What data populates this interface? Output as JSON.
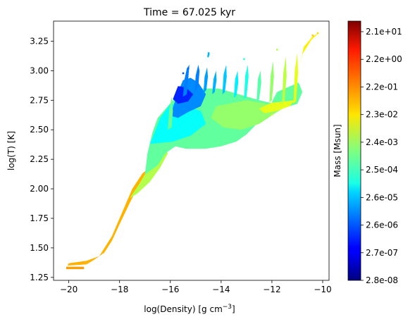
{
  "chart_data": {
    "type": "heatmap",
    "title": "Time = 67.025 kyr",
    "xlabel": "log(Density) [g cm",
    "xlabel_sup": "−3",
    "xlabel_end": "]",
    "ylabel": "log(T) [K]",
    "xlim": [
      -20.6,
      -9.75
    ],
    "ylim": [
      1.225,
      3.42
    ],
    "x_ticks": [
      {
        "value": -20,
        "label": "−20"
      },
      {
        "value": -18,
        "label": "−18"
      },
      {
        "value": -16,
        "label": "−16"
      },
      {
        "value": -14,
        "label": "−14"
      },
      {
        "value": -12,
        "label": "−12"
      },
      {
        "value": -10,
        "label": "−10"
      }
    ],
    "y_ticks": [
      {
        "value": 1.25,
        "label": "1.25"
      },
      {
        "value": 1.5,
        "label": "1.50"
      },
      {
        "value": 1.75,
        "label": "1.75"
      },
      {
        "value": 2.0,
        "label": "2.00"
      },
      {
        "value": 2.25,
        "label": "2.25"
      },
      {
        "value": 2.5,
        "label": "2.50"
      },
      {
        "value": 2.75,
        "label": "2.75"
      },
      {
        "value": 3.0,
        "label": "3.00"
      },
      {
        "value": 3.25,
        "label": "3.25"
      }
    ],
    "grid": false,
    "colormap": "jet",
    "colorbar": {
      "label": "Mass [Msun]",
      "tick_labels": [
        "2.1e+01",
        "2.2e+00",
        "2.2e-01",
        "2.3e-02",
        "2.4e-03",
        "2.5e-04",
        "2.6e-05",
        "2.6e-06",
        "2.7e-07",
        "2.8e-08"
      ]
    },
    "regions": [
      {
        "level": 0.72,
        "points": [
          [
            -20.1,
            1.32
          ],
          [
            -19.4,
            1.32
          ],
          [
            -19.4,
            1.34
          ],
          [
            -20.1,
            1.34
          ]
        ]
      },
      {
        "level": 0.7,
        "points": [
          [
            -20.05,
            1.35
          ],
          [
            -19.3,
            1.36
          ],
          [
            -19.0,
            1.4
          ],
          [
            -18.6,
            1.46
          ],
          [
            -18.3,
            1.56
          ],
          [
            -18.0,
            1.7
          ],
          [
            -17.6,
            1.88
          ],
          [
            -17.2,
            2.05
          ],
          [
            -16.9,
            2.15
          ],
          [
            -16.7,
            2.2
          ],
          [
            -17.1,
            2.13
          ],
          [
            -17.5,
            2.0
          ],
          [
            -17.9,
            1.8
          ],
          [
            -18.3,
            1.6
          ],
          [
            -18.8,
            1.43
          ],
          [
            -19.3,
            1.39
          ],
          [
            -20.0,
            1.37
          ]
        ]
      },
      {
        "level": 0.55,
        "points": [
          [
            -17.6,
            1.92
          ],
          [
            -17.2,
            2.05
          ],
          [
            -16.9,
            2.16
          ],
          [
            -16.6,
            2.28
          ],
          [
            -16.3,
            2.38
          ],
          [
            -16.1,
            2.3
          ],
          [
            -16.4,
            2.18
          ],
          [
            -16.8,
            2.06
          ],
          [
            -17.3,
            1.96
          ]
        ]
      },
      {
        "level": 0.47,
        "points": [
          [
            -17.0,
            2.12
          ],
          [
            -16.9,
            2.3
          ],
          [
            -16.7,
            2.48
          ],
          [
            -16.5,
            2.6
          ],
          [
            -16.1,
            2.7
          ],
          [
            -15.7,
            2.8
          ],
          [
            -15.3,
            2.84
          ],
          [
            -14.7,
            2.85
          ],
          [
            -14.1,
            2.85
          ],
          [
            -13.3,
            2.8
          ],
          [
            -12.5,
            2.75
          ],
          [
            -11.9,
            2.72
          ],
          [
            -11.3,
            2.7
          ],
          [
            -11.0,
            2.72
          ],
          [
            -10.8,
            2.82
          ],
          [
            -10.95,
            2.9
          ],
          [
            -11.8,
            2.82
          ],
          [
            -12.2,
            2.65
          ],
          [
            -12.6,
            2.55
          ],
          [
            -13.0,
            2.46
          ],
          [
            -13.4,
            2.4
          ],
          [
            -14.0,
            2.36
          ],
          [
            -14.6,
            2.34
          ],
          [
            -15.4,
            2.34
          ],
          [
            -15.8,
            2.36
          ],
          [
            -16.2,
            2.3
          ],
          [
            -16.5,
            2.2
          ]
        ]
      },
      {
        "level": 0.52,
        "points": [
          [
            -14.2,
            2.7
          ],
          [
            -13.0,
            2.75
          ],
          [
            -12.2,
            2.72
          ],
          [
            -11.6,
            2.7
          ],
          [
            -11.2,
            2.73
          ],
          [
            -11.8,
            2.65
          ],
          [
            -12.5,
            2.55
          ],
          [
            -13.2,
            2.5
          ],
          [
            -13.9,
            2.52
          ],
          [
            -14.4,
            2.6
          ]
        ]
      },
      {
        "level": 0.6,
        "points": [
          [
            -12.5,
            2.68
          ],
          [
            -12.0,
            2.73
          ],
          [
            -11.5,
            2.74
          ],
          [
            -11.1,
            2.75
          ],
          [
            -11.3,
            2.7
          ],
          [
            -11.8,
            2.66
          ],
          [
            -12.3,
            2.64
          ]
        ]
      },
      {
        "level": 0.38,
        "points": [
          [
            -16.8,
            2.38
          ],
          [
            -16.4,
            2.6
          ],
          [
            -16.0,
            2.72
          ],
          [
            -15.4,
            2.7
          ],
          [
            -14.8,
            2.66
          ],
          [
            -14.6,
            2.55
          ],
          [
            -15.2,
            2.45
          ],
          [
            -15.9,
            2.4
          ]
        ]
      },
      {
        "level": 0.26,
        "points": [
          [
            -16.0,
            2.62
          ],
          [
            -15.7,
            2.82
          ],
          [
            -15.5,
            2.92
          ],
          [
            -15.2,
            2.94
          ],
          [
            -14.9,
            2.9
          ],
          [
            -14.6,
            2.8
          ],
          [
            -14.8,
            2.7
          ],
          [
            -15.3,
            2.65
          ],
          [
            -15.7,
            2.6
          ]
        ]
      },
      {
        "level": 0.16,
        "points": [
          [
            -15.9,
            2.76
          ],
          [
            -15.7,
            2.87
          ],
          [
            -15.4,
            2.86
          ],
          [
            -15.1,
            2.8
          ],
          [
            -15.3,
            2.74
          ],
          [
            -15.7,
            2.72
          ]
        ]
      },
      {
        "level": 0.48,
        "points": [
          [
            -16.1,
            2.5
          ],
          [
            -16.05,
            2.66
          ],
          [
            -15.95,
            2.78
          ],
          [
            -15.9,
            2.66
          ],
          [
            -15.95,
            2.52
          ]
        ]
      },
      {
        "level": 0.25,
        "points": [
          [
            -15.5,
            2.78
          ],
          [
            -15.45,
            2.92
          ],
          [
            -15.35,
            3.02
          ],
          [
            -15.25,
            3.05
          ],
          [
            -15.3,
            2.92
          ],
          [
            -15.35,
            2.8
          ]
        ]
      },
      {
        "level": 0.25,
        "points": [
          [
            -15.05,
            2.82
          ],
          [
            -15.0,
            2.96
          ],
          [
            -14.9,
            3.05
          ],
          [
            -14.85,
            3.0
          ],
          [
            -14.9,
            2.86
          ]
        ]
      },
      {
        "level": 0.28,
        "points": [
          [
            -14.7,
            2.8
          ],
          [
            -14.65,
            2.95
          ],
          [
            -14.55,
            3.03
          ],
          [
            -14.52,
            2.95
          ],
          [
            -14.58,
            2.84
          ]
        ]
      },
      {
        "level": 0.3,
        "points": [
          [
            -14.35,
            2.8
          ],
          [
            -14.3,
            2.93
          ],
          [
            -14.2,
            3.0
          ],
          [
            -14.18,
            2.92
          ],
          [
            -14.25,
            2.82
          ]
        ]
      },
      {
        "level": 0.32,
        "points": [
          [
            -13.95,
            2.8
          ],
          [
            -13.9,
            2.97
          ],
          [
            -13.8,
            3.05
          ],
          [
            -13.78,
            2.95
          ],
          [
            -13.85,
            2.82
          ]
        ]
      },
      {
        "level": 0.36,
        "points": [
          [
            -13.5,
            2.77
          ],
          [
            -13.45,
            2.93
          ],
          [
            -13.35,
            3.0
          ],
          [
            -13.32,
            2.9
          ],
          [
            -13.4,
            2.79
          ]
        ]
      },
      {
        "level": 0.4,
        "points": [
          [
            -13.1,
            2.76
          ],
          [
            -13.05,
            2.96
          ],
          [
            -12.95,
            3.05
          ],
          [
            -12.92,
            2.95
          ],
          [
            -13.0,
            2.78
          ]
        ]
      },
      {
        "level": 0.46,
        "points": [
          [
            -12.6,
            2.74
          ],
          [
            -12.55,
            2.93
          ],
          [
            -12.45,
            3.0
          ],
          [
            -12.42,
            2.9
          ],
          [
            -12.5,
            2.76
          ]
        ]
      },
      {
        "level": 0.52,
        "points": [
          [
            -12.1,
            2.73
          ],
          [
            -12.05,
            2.96
          ],
          [
            -11.95,
            3.08
          ],
          [
            -11.92,
            2.95
          ],
          [
            -12.0,
            2.75
          ]
        ]
      },
      {
        "level": 0.56,
        "points": [
          [
            -11.6,
            2.72
          ],
          [
            -11.55,
            2.98
          ],
          [
            -11.45,
            3.12
          ],
          [
            -11.42,
            2.96
          ],
          [
            -11.5,
            2.74
          ]
        ]
      },
      {
        "level": 0.6,
        "points": [
          [
            -11.15,
            2.72
          ],
          [
            -11.1,
            3.0
          ],
          [
            -11.0,
            3.15
          ],
          [
            -10.97,
            2.98
          ],
          [
            -11.05,
            2.74
          ]
        ]
      },
      {
        "level": 0.64,
        "points": [
          [
            -10.9,
            3.05
          ],
          [
            -10.75,
            3.2
          ],
          [
            -10.4,
            3.29
          ],
          [
            -10.15,
            3.32
          ],
          [
            -10.45,
            3.26
          ],
          [
            -10.8,
            3.14
          ]
        ]
      },
      {
        "level": 0.3,
        "points": [
          [
            -14.55,
            3.12
          ],
          [
            -14.5,
            3.16
          ],
          [
            -14.45,
            3.14
          ],
          [
            -14.5,
            3.11
          ]
        ]
      }
    ],
    "dots": [
      {
        "x": -15.5,
        "y": 2.98,
        "level": 0.2
      },
      {
        "x": -15.3,
        "y": 3.02,
        "level": 0.22
      },
      {
        "x": -14.5,
        "y": 3.15,
        "level": 0.3
      },
      {
        "x": -13.1,
        "y": 3.1,
        "level": 0.42
      },
      {
        "x": -11.8,
        "y": 3.18,
        "level": 0.55
      },
      {
        "x": -10.4,
        "y": 3.3,
        "level": 0.68
      },
      {
        "x": -10.2,
        "y": 3.32,
        "level": 0.66
      },
      {
        "x": -16.0,
        "y": 2.42,
        "level": 0.38
      },
      {
        "x": -12.0,
        "y": 2.63,
        "level": 0.58
      }
    ]
  }
}
